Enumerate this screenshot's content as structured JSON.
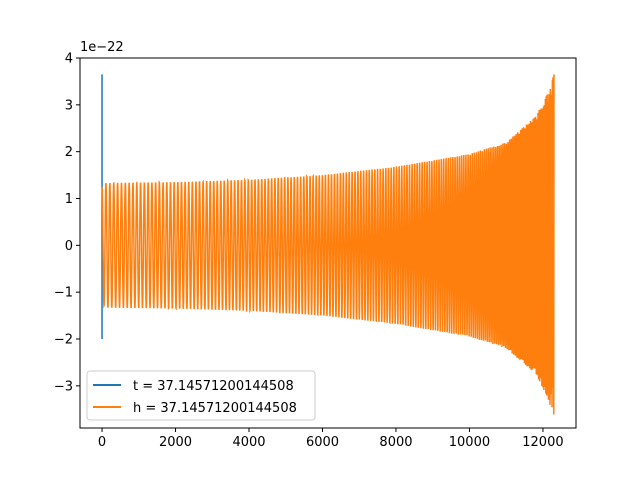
{
  "chart_data": {
    "type": "line",
    "title": "",
    "xlabel": "",
    "ylabel": "",
    "y_offset_label": "1e−22",
    "xlim": [
      -600,
      12900
    ],
    "ylim": [
      -3.9,
      4.0
    ],
    "xticks": [
      0,
      2000,
      4000,
      6000,
      8000,
      10000,
      12000
    ],
    "xtick_labels": [
      "0",
      "2000",
      "4000",
      "6000",
      "8000",
      "10000",
      "12000"
    ],
    "yticks": [
      -3,
      -2,
      -1,
      0,
      1,
      2,
      3,
      4
    ],
    "ytick_labels": [
      "−3",
      "−2",
      "−1",
      "0",
      "1",
      "2",
      "3",
      "4"
    ],
    "grid": false,
    "legend_position": "lower-left",
    "series": [
      {
        "name": "t = 37.14571200144508",
        "color": "#1f77b4",
        "points": [
          [
            0,
            3.65
          ],
          [
            0,
            -2.0
          ],
          [
            0,
            -0.3
          ]
        ]
      },
      {
        "name": "h = 37.14571200144508",
        "color": "#ff7f0e",
        "x_start": 0,
        "x_end": 12300,
        "envelope": [
          [
            0,
            1.25
          ],
          [
            100,
            1.33
          ],
          [
            2000,
            1.35
          ],
          [
            4000,
            1.4
          ],
          [
            6000,
            1.5
          ],
          [
            8000,
            1.68
          ],
          [
            10000,
            1.95
          ],
          [
            11000,
            2.2
          ],
          [
            11800,
            2.75
          ],
          [
            12100,
            3.2
          ],
          [
            12300,
            3.65
          ]
        ],
        "cycles_visible": 180
      }
    ]
  }
}
